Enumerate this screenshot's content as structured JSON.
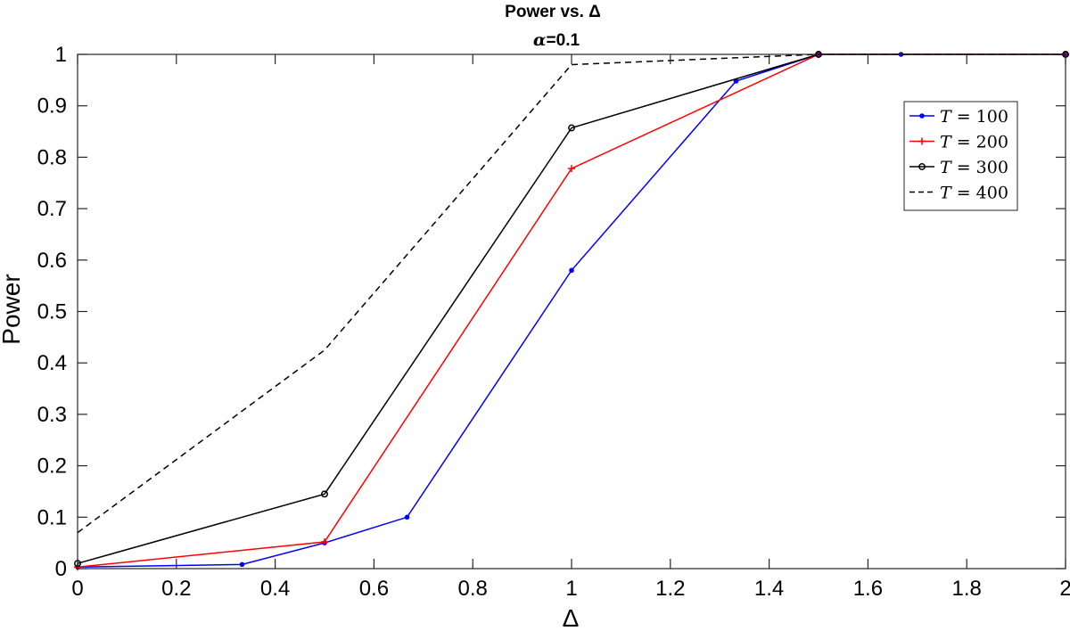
{
  "chart_data": {
    "type": "line",
    "title": "Power vs. Δ",
    "subtitle_symbol": "α",
    "subtitle_value": "=0.1",
    "xlabel": "Δ",
    "ylabel": "Power",
    "xlim": [
      0,
      2
    ],
    "ylim": [
      0,
      1
    ],
    "xticks": [
      0,
      0.2,
      0.4,
      0.6,
      0.8,
      1,
      1.2,
      1.4,
      1.6,
      1.8,
      2
    ],
    "yticks": [
      0,
      0.1,
      0.2,
      0.3,
      0.4,
      0.5,
      0.6,
      0.7,
      0.8,
      0.9,
      1
    ],
    "grid": false,
    "legend_position": "top-right",
    "series": [
      {
        "name_var": "T",
        "name_value": " = 100",
        "color": "#0000ff",
        "style": "solid",
        "marker": "dot",
        "x": [
          0,
          0.333,
          0.5,
          0.667,
          1,
          1.333,
          1.5,
          1.667,
          2
        ],
        "y": [
          0.003,
          0.008,
          0.05,
          0.1,
          0.58,
          0.948,
          1.0,
          1.0,
          1.0
        ]
      },
      {
        "name_var": "T",
        "name_value": " = 200",
        "color": "#ff0000",
        "style": "solid",
        "marker": "plus",
        "x": [
          0,
          0.5,
          1,
          1.5,
          2
        ],
        "y": [
          0.003,
          0.052,
          0.778,
          1.0,
          1.0
        ]
      },
      {
        "name_var": "T",
        "name_value": " = 300",
        "color": "#000000",
        "style": "solid",
        "marker": "circle",
        "x": [
          0,
          0.5,
          1,
          1.5,
          2
        ],
        "y": [
          0.01,
          0.145,
          0.857,
          1.0,
          1.0
        ]
      },
      {
        "name_var": "T",
        "name_value": " = 400",
        "color": "#000000",
        "style": "dashed",
        "marker": "none",
        "x": [
          0,
          0.5,
          1,
          1.5,
          2
        ],
        "y": [
          0.07,
          0.425,
          0.98,
          1.0,
          1.0
        ]
      }
    ]
  }
}
